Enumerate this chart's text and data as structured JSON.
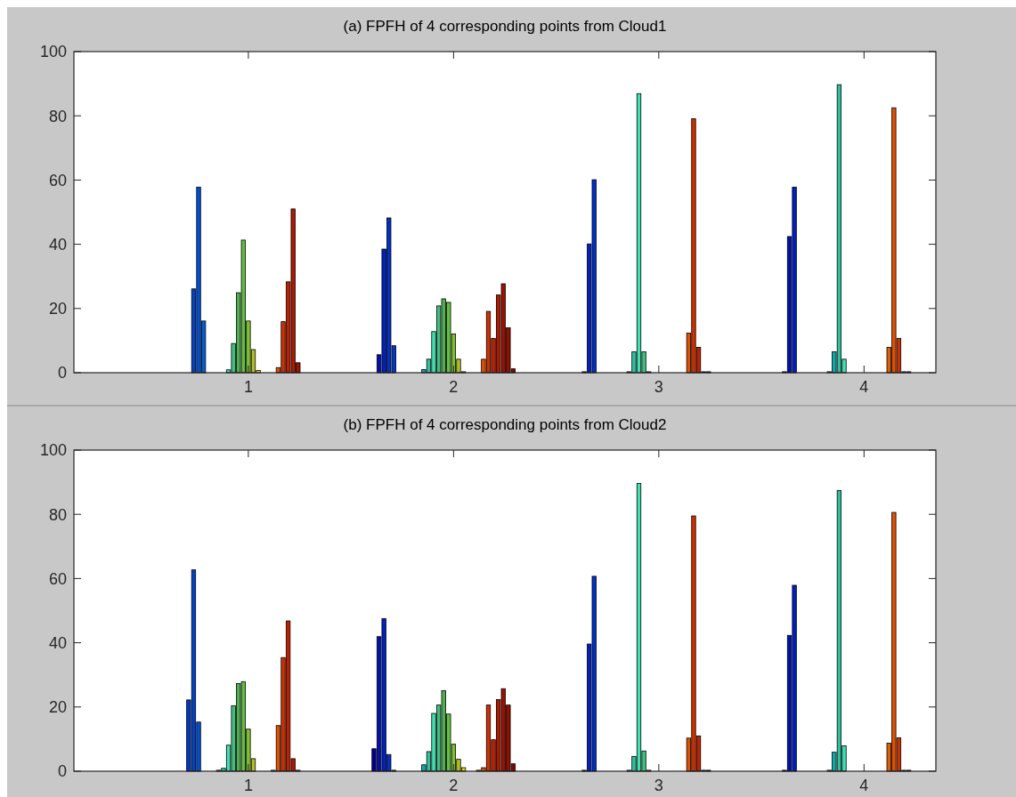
{
  "chart_data": [
    {
      "type": "bar",
      "title": "(a) FPFH of 4 corresponding points from Cloud1",
      "categories": [
        "1",
        "2",
        "3",
        "4"
      ],
      "ylim": [
        0,
        100
      ],
      "yticks": [
        0,
        20,
        40,
        60,
        80,
        100
      ],
      "grid": false,
      "series": [
        {
          "color": "#000090",
          "values": [
            0,
            0,
            0,
            0.3
          ]
        },
        {
          "color": "#0010b0",
          "values": [
            0,
            5.6,
            0.3,
            42.4
          ]
        },
        {
          "color": "#0020c0",
          "values": [
            0,
            38.5,
            40.1,
            57.8
          ]
        },
        {
          "color": "#0030c8",
          "values": [
            0,
            48.2,
            60.1,
            0
          ]
        },
        {
          "color": "#0038c8",
          "values": [
            0,
            8.4,
            0,
            0
          ]
        },
        {
          "color": "#0040c8",
          "values": [
            26.1,
            0,
            0,
            0
          ]
        },
        {
          "color": "#0050d0",
          "values": [
            57.8,
            0,
            0,
            0
          ]
        },
        {
          "color": "#0060d8",
          "values": [
            16.1,
            0,
            0,
            0
          ]
        },
        {
          "color": "#0070e0",
          "values": [
            0,
            0,
            0,
            0
          ]
        },
        {
          "color": "#1090d0",
          "values": [
            0,
            0,
            0,
            0.3
          ]
        },
        {
          "color": "#10a8a8",
          "values": [
            0,
            1,
            0.3,
            6.5
          ]
        },
        {
          "color": "#30c0a0",
          "values": [
            0,
            4.2,
            6.5,
            89.7
          ]
        },
        {
          "color": "#40e0b0",
          "values": [
            0.9,
            12.8,
            86.9,
            4.2
          ]
        },
        {
          "color": "#40c080",
          "values": [
            9.1,
            20.8,
            6.5,
            0
          ]
        },
        {
          "color": "#50b050",
          "values": [
            24.9,
            23,
            0.3,
            0
          ]
        },
        {
          "color": "#60c040",
          "values": [
            41.3,
            21.9,
            null,
            0
          ]
        },
        {
          "color": "#80c030",
          "values": [
            16.1,
            12.1,
            0,
            0
          ]
        },
        {
          "color": "#b0c020",
          "values": [
            7.2,
            4.2,
            0,
            0
          ]
        },
        {
          "color": "#e0e000",
          "values": [
            0.7,
            0.3,
            0,
            0
          ]
        },
        {
          "color": "#e0c000",
          "values": [
            0,
            0,
            0,
            0
          ]
        },
        {
          "color": "#e09000",
          "values": [
            0,
            0,
            0,
            0
          ]
        },
        {
          "color": "#e06000",
          "values": [
            0,
            0,
            0,
            7.9
          ]
        },
        {
          "color": "#e05000",
          "values": [
            1.6,
            4.2,
            12.3,
            82.5
          ]
        },
        {
          "color": "#d03000",
          "values": [
            15.9,
            19.1,
            79.1,
            10.7
          ]
        },
        {
          "color": "#c02000",
          "values": [
            28.3,
            10.7,
            7.9,
            0.3
          ]
        },
        {
          "color": "#b01800",
          "values": [
            51,
            24.2,
            0.3,
            0.3
          ]
        },
        {
          "color": "#a01000",
          "values": [
            3.1,
            27.7,
            0.3,
            0
          ]
        },
        {
          "color": "#901000",
          "values": [
            null,
            14,
            0,
            0
          ]
        },
        {
          "color": "#800800",
          "values": [
            0,
            1.2,
            0,
            0
          ]
        },
        {
          "color": "#800000",
          "values": [
            0,
            0,
            0,
            0
          ]
        },
        {
          "color": "#700000",
          "values": [
            0,
            0,
            0,
            0
          ]
        },
        {
          "color": "#680000",
          "values": [
            0,
            0,
            0,
            0
          ]
        },
        {
          "color": "#600000",
          "values": [
            0,
            0,
            0,
            0
          ]
        }
      ]
    },
    {
      "type": "bar",
      "title": "(b) FPFH of 4 corresponding points from Cloud2",
      "categories": [
        "1",
        "2",
        "3",
        "4"
      ],
      "ylim": [
        0,
        100
      ],
      "yticks": [
        0,
        20,
        40,
        60,
        80,
        100
      ],
      "grid": false,
      "series": [
        {
          "color": "#000090",
          "values": [
            0,
            7,
            0,
            0.3
          ]
        },
        {
          "color": "#0010b0",
          "values": [
            0,
            41.9,
            0.3,
            42.3
          ]
        },
        {
          "color": "#0020c0",
          "values": [
            0,
            47.5,
            39.6,
            57.9
          ]
        },
        {
          "color": "#0030c8",
          "values": [
            0,
            5.2,
            60.7,
            0
          ]
        },
        {
          "color": "#0038c8",
          "values": [
            22.2,
            0.3,
            0,
            0
          ]
        },
        {
          "color": "#0040c8",
          "values": [
            62.7,
            0,
            0,
            0
          ]
        },
        {
          "color": "#0050d0",
          "values": [
            15.3,
            0,
            0,
            0
          ]
        },
        {
          "color": "#0060d8",
          "values": [
            0,
            0,
            0,
            0
          ]
        },
        {
          "color": "#0070e0",
          "values": [
            0,
            0,
            0,
            0
          ]
        },
        {
          "color": "#1090d0",
          "values": [
            0,
            0,
            0,
            0.3
          ]
        },
        {
          "color": "#10a8a8",
          "values": [
            0.3,
            2,
            0.3,
            5.9
          ]
        },
        {
          "color": "#30c0a0",
          "values": [
            0.9,
            6.1,
            4.6,
            87.4
          ]
        },
        {
          "color": "#40e0b0",
          "values": [
            8.1,
            18,
            89.6,
            7.9
          ]
        },
        {
          "color": "#40c080",
          "values": [
            20.4,
            20.6,
            6.3,
            0
          ]
        },
        {
          "color": "#50b050",
          "values": [
            27.3,
            25.1,
            0.3,
            0
          ]
        },
        {
          "color": "#60c040",
          "values": [
            27.9,
            17.8,
            0,
            0
          ]
        },
        {
          "color": "#80c030",
          "values": [
            13.1,
            8.4,
            0,
            0
          ]
        },
        {
          "color": "#b0c020",
          "values": [
            3.9,
            3.7,
            0,
            0
          ]
        },
        {
          "color": "#e0e000",
          "values": [
            0,
            1.1,
            0,
            0
          ]
        },
        {
          "color": "#e0c000",
          "values": [
            0,
            0,
            0,
            0
          ]
        },
        {
          "color": "#e09000",
          "values": [
            0,
            0,
            0,
            0
          ]
        },
        {
          "color": "#e06000",
          "values": [
            0.3,
            0.3,
            0,
            8.7
          ]
        },
        {
          "color": "#e05000",
          "values": [
            14.2,
            1.1,
            10.3,
            80.6
          ]
        },
        {
          "color": "#d03000",
          "values": [
            35.4,
            20.6,
            79.5,
            10.4
          ]
        },
        {
          "color": "#c02000",
          "values": [
            46.8,
            9.8,
            11,
            0.3
          ]
        },
        {
          "color": "#b01800",
          "values": [
            3.9,
            22.3,
            0.3,
            0.3
          ]
        },
        {
          "color": "#a01000",
          "values": [
            0.3,
            25.7,
            0.3,
            0
          ]
        },
        {
          "color": "#901000",
          "values": [
            0,
            20.6,
            0,
            0
          ]
        },
        {
          "color": "#800800",
          "values": [
            0,
            2.3,
            0,
            0
          ]
        },
        {
          "color": "#800000",
          "values": [
            0,
            0,
            0,
            0
          ]
        },
        {
          "color": "#700000",
          "values": [
            0,
            0,
            0,
            0
          ]
        },
        {
          "color": "#680000",
          "values": [
            0,
            0,
            0,
            0
          ]
        },
        {
          "color": "#600000",
          "values": [
            0,
            0,
            0,
            0
          ]
        }
      ]
    }
  ]
}
